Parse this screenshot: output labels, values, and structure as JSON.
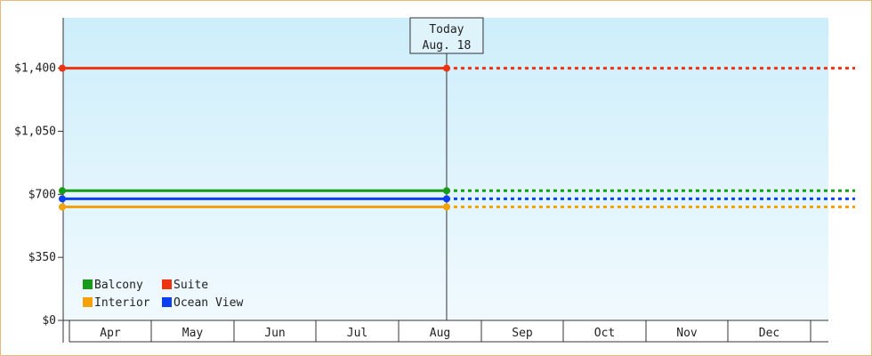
{
  "chart_data": {
    "type": "line",
    "categories": [
      "Apr",
      "May",
      "Jun",
      "Jul",
      "Aug",
      "Sep",
      "Oct",
      "Nov",
      "Dec"
    ],
    "y_ticks": [
      "$0",
      "$350",
      "$700",
      "$1,050",
      "$1,400"
    ],
    "ylim": [
      0,
      1680
    ],
    "today": {
      "line1": "Today",
      "line2": "Aug. 18",
      "month": "Aug",
      "fraction_of_month": 0.58
    },
    "series": [
      {
        "name": "Balcony",
        "color": "#1a9a1a",
        "value": 720
      },
      {
        "name": "Suite",
        "color": "#ee3311",
        "value": 1400
      },
      {
        "name": "Interior",
        "color": "#f5a10a",
        "value": 630
      },
      {
        "name": "Ocean View",
        "color": "#0b3ff0",
        "value": 675
      }
    ],
    "observed_from": "Apr",
    "future_style": "dotted",
    "legend_position": "bottom-left",
    "background_gradient": [
      "#cdeefb",
      "#f1fafe"
    ]
  }
}
